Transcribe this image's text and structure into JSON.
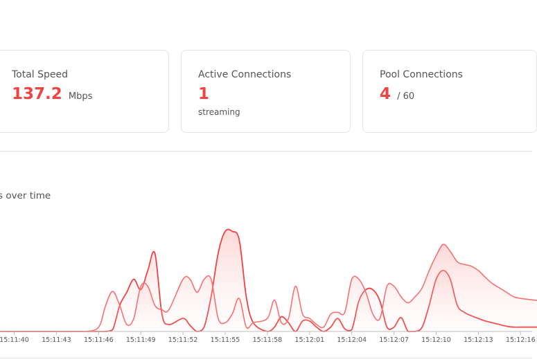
{
  "stats": {
    "total_speed": {
      "label": "Total Speed",
      "value": "137.2",
      "unit": "Mbps"
    },
    "active_connections": {
      "label": "Active Connections",
      "value": "1",
      "sub": "streaming"
    },
    "pool_connections": {
      "label": "Pool Connections",
      "value": "4",
      "max": "/ 60"
    }
  },
  "chart": {
    "title": "s over time"
  },
  "chart_data": {
    "type": "area",
    "xlabel": "",
    "ylabel": "",
    "grid": false,
    "x_ticks": [
      "15:11:40",
      "15:11:43",
      "15:11:46",
      "15:11:49",
      "15:11:52",
      "15:11:55",
      "15:11:58",
      "15:12:01",
      "15:12:04",
      "15:12:07",
      "15:12:10",
      "15:12:13",
      "15:12:16"
    ],
    "series": [
      {
        "color": "#ef4444",
        "x": [
          39.0,
          40.5,
          42.0,
          43.5,
          45.0,
          46.0,
          46.5,
          47.0,
          47.5,
          48.0,
          48.5,
          49.0,
          49.5,
          50.0,
          50.5,
          51.0,
          52.0,
          52.5,
          53.0,
          53.5,
          54.0,
          54.5,
          55.0,
          55.5,
          56.0,
          56.5,
          57.0,
          58.0,
          58.5,
          59.0,
          59.5,
          60.0,
          60.5,
          61.0,
          61.5,
          62.0,
          62.5,
          63.0,
          63.5,
          64.0,
          64.5,
          65.0,
          65.5,
          66.0,
          66.5,
          67.0,
          67.5,
          68.0,
          68.5,
          69.0,
          69.5,
          70.0,
          70.5,
          71.0,
          71.5,
          72.0,
          72.5,
          73.0,
          73.5,
          74.0,
          74.5,
          75.0,
          75.5,
          76.0,
          77.0,
          77.5
        ],
        "values": [
          0,
          0,
          0,
          0,
          0,
          0,
          0,
          2,
          30,
          45,
          60,
          48,
          70,
          90,
          20,
          8,
          15,
          7,
          0,
          5,
          40,
          90,
          115,
          115,
          105,
          40,
          10,
          0,
          5,
          17,
          10,
          0,
          12,
          12,
          5,
          0,
          5,
          15,
          3,
          2,
          35,
          48,
          48,
          35,
          5,
          5,
          16,
          0,
          0,
          5,
          30,
          60,
          70,
          60,
          30,
          22,
          18,
          15,
          12,
          10,
          8,
          6,
          5,
          5,
          5,
          5
        ]
      },
      {
        "color": "#f87171",
        "x": [
          39.0,
          40.5,
          42.0,
          43.5,
          45.0,
          46.0,
          46.5,
          47.0,
          47.5,
          48.0,
          48.5,
          49.0,
          49.5,
          50.0,
          50.5,
          51.0,
          52.0,
          52.5,
          53.0,
          53.5,
          54.0,
          54.5,
          55.0,
          55.5,
          56.0,
          56.5,
          57.0,
          58.0,
          58.5,
          59.0,
          59.5,
          60.0,
          60.5,
          61.0,
          61.5,
          62.0,
          62.5,
          63.0,
          63.5,
          64.0,
          64.5,
          65.0,
          65.5,
          66.0,
          66.5,
          67.0,
          67.5,
          68.0,
          68.5,
          69.0,
          69.5,
          70.0,
          70.5,
          71.0,
          71.5,
          72.0,
          72.5,
          73.0,
          73.5,
          74.0,
          74.5,
          75.0,
          75.5,
          76.0,
          77.0,
          77.5
        ],
        "values": [
          0,
          0,
          0,
          0,
          0,
          5,
          30,
          46,
          30,
          8,
          15,
          52,
          52,
          30,
          25,
          25,
          60,
          60,
          45,
          60,
          60,
          15,
          10,
          20,
          38,
          5,
          10,
          15,
          36,
          10,
          15,
          52,
          20,
          15,
          8,
          5,
          20,
          22,
          22,
          60,
          60,
          45,
          20,
          15,
          52,
          52,
          40,
          33,
          40,
          50,
          70,
          87,
          100,
          92,
          80,
          77,
          75,
          70,
          62,
          55,
          50,
          45,
          40,
          38,
          36,
          35
        ]
      }
    ]
  }
}
